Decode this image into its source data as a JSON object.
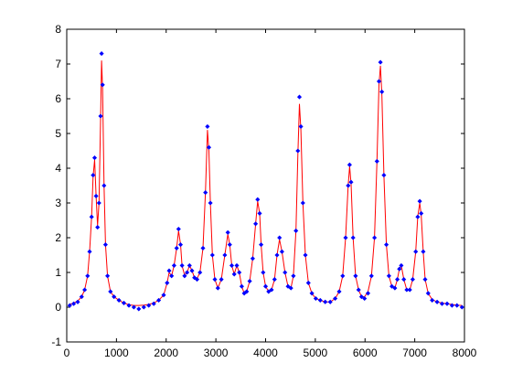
{
  "chart_data": {
    "type": "scatter",
    "title": "",
    "xlabel": "",
    "ylabel": "",
    "xlim": [
      0,
      8000
    ],
    "ylim": [
      -1,
      8
    ],
    "x_ticks": [
      0,
      1000,
      2000,
      3000,
      4000,
      5000,
      6000,
      7000,
      8000
    ],
    "x_tick_labels": [
      "0",
      "1000",
      "2000",
      "3000",
      "4000",
      "5000",
      "6000",
      "7000",
      "8000"
    ],
    "y_ticks": [
      -1,
      0,
      1,
      2,
      3,
      4,
      5,
      6,
      7,
      8
    ],
    "y_tick_labels": [
      "-1",
      "0",
      "1",
      "2",
      "3",
      "4",
      "5",
      "6",
      "7",
      "8"
    ],
    "grid": false,
    "legend": "none",
    "marker_color": "#0000ff",
    "line_color": "#ff0000",
    "series": [
      {
        "style": "blue-dot-markers",
        "x": [
          60,
          140,
          220,
          300,
          360,
          420,
          460,
          500,
          530,
          560,
          590,
          620,
          650,
          680,
          700,
          720,
          750,
          780,
          820,
          880,
          950,
          1050,
          1150,
          1250,
          1350,
          1450,
          1550,
          1650,
          1750,
          1850,
          1950,
          2020,
          2060,
          2110,
          2160,
          2210,
          2250,
          2290,
          2320,
          2370,
          2420,
          2470,
          2520,
          2570,
          2620,
          2680,
          2740,
          2790,
          2830,
          2860,
          2890,
          2930,
          2980,
          3040,
          3110,
          3180,
          3240,
          3280,
          3320,
          3370,
          3420,
          3470,
          3520,
          3570,
          3620,
          3680,
          3740,
          3800,
          3840,
          3880,
          3910,
          3950,
          4000,
          4060,
          4120,
          4180,
          4230,
          4280,
          4330,
          4390,
          4450,
          4510,
          4560,
          4610,
          4650,
          4680,
          4710,
          4750,
          4800,
          4860,
          4930,
          5010,
          5100,
          5200,
          5300,
          5400,
          5480,
          5550,
          5610,
          5660,
          5690,
          5720,
          5760,
          5810,
          5870,
          5930,
          5990,
          6060,
          6130,
          6190,
          6240,
          6280,
          6310,
          6340,
          6380,
          6430,
          6480,
          6540,
          6600,
          6650,
          6690,
          6730,
          6780,
          6840,
          6900,
          6960,
          7020,
          7060,
          7100,
          7130,
          7170,
          7210,
          7270,
          7350,
          7450,
          7550,
          7650,
          7750,
          7850,
          7950
        ],
        "y": [
          0.05,
          0.1,
          0.15,
          0.3,
          0.5,
          0.9,
          1.6,
          2.6,
          3.8,
          4.3,
          3.2,
          2.3,
          3.0,
          5.5,
          7.3,
          6.4,
          3.5,
          1.8,
          0.9,
          0.45,
          0.3,
          0.2,
          0.12,
          0.05,
          0.0,
          -0.05,
          0.0,
          0.05,
          0.1,
          0.2,
          0.35,
          0.7,
          1.05,
          0.9,
          1.2,
          1.7,
          2.25,
          1.8,
          1.2,
          0.9,
          1.0,
          1.2,
          1.05,
          0.85,
          0.8,
          1.0,
          1.7,
          3.3,
          5.2,
          4.6,
          3.0,
          1.5,
          0.8,
          0.55,
          0.8,
          1.5,
          2.15,
          1.8,
          1.2,
          0.95,
          1.2,
          1.0,
          0.6,
          0.4,
          0.45,
          0.75,
          1.4,
          2.4,
          3.1,
          2.7,
          1.8,
          1.0,
          0.6,
          0.45,
          0.5,
          0.8,
          1.5,
          2.0,
          1.6,
          1.0,
          0.6,
          0.55,
          0.9,
          2.2,
          4.5,
          6.05,
          5.2,
          3.0,
          1.5,
          0.7,
          0.4,
          0.25,
          0.2,
          0.15,
          0.15,
          0.25,
          0.45,
          0.9,
          2.0,
          3.5,
          4.1,
          3.6,
          2.0,
          0.9,
          0.5,
          0.3,
          0.25,
          0.4,
          0.9,
          2.0,
          4.2,
          6.5,
          7.05,
          6.2,
          3.8,
          1.8,
          0.9,
          0.6,
          0.55,
          0.8,
          1.1,
          1.2,
          0.8,
          0.5,
          0.5,
          0.8,
          1.6,
          2.6,
          3.05,
          2.7,
          1.6,
          0.8,
          0.4,
          0.2,
          0.15,
          0.1,
          0.1,
          0.05,
          0.05,
          0.0
        ]
      },
      {
        "style": "red-line",
        "x": [
          60,
          140,
          220,
          300,
          360,
          420,
          460,
          500,
          530,
          560,
          590,
          620,
          650,
          680,
          700,
          720,
          750,
          780,
          820,
          880,
          950,
          1050,
          1150,
          1250,
          1350,
          1450,
          1550,
          1650,
          1750,
          1850,
          1950,
          2020,
          2060,
          2110,
          2160,
          2210,
          2250,
          2290,
          2320,
          2370,
          2420,
          2470,
          2520,
          2570,
          2620,
          2680,
          2740,
          2790,
          2830,
          2860,
          2890,
          2930,
          2980,
          3040,
          3110,
          3180,
          3240,
          3280,
          3320,
          3370,
          3420,
          3470,
          3520,
          3570,
          3620,
          3680,
          3740,
          3800,
          3840,
          3880,
          3910,
          3950,
          4000,
          4060,
          4120,
          4180,
          4230,
          4280,
          4330,
          4390,
          4450,
          4510,
          4560,
          4610,
          4650,
          4680,
          4710,
          4750,
          4800,
          4860,
          4930,
          5010,
          5100,
          5200,
          5300,
          5400,
          5480,
          5550,
          5610,
          5660,
          5690,
          5720,
          5760,
          5810,
          5870,
          5930,
          5990,
          6060,
          6130,
          6190,
          6240,
          6280,
          6310,
          6340,
          6380,
          6430,
          6480,
          6540,
          6600,
          6650,
          6690,
          6730,
          6780,
          6840,
          6900,
          6960,
          7020,
          7060,
          7100,
          7130,
          7170,
          7210,
          7270,
          7350,
          7450,
          7550,
          7650,
          7750,
          7850,
          7950
        ],
        "y": [
          0.08,
          0.12,
          0.18,
          0.3,
          0.5,
          0.9,
          1.6,
          2.6,
          3.75,
          4.25,
          3.2,
          2.35,
          3.0,
          5.4,
          7.1,
          6.3,
          3.5,
          1.8,
          0.9,
          0.45,
          0.3,
          0.2,
          0.12,
          0.07,
          0.05,
          0.05,
          0.06,
          0.08,
          0.12,
          0.2,
          0.35,
          0.7,
          1.0,
          0.9,
          1.2,
          1.7,
          2.2,
          1.8,
          1.2,
          0.92,
          1.0,
          1.2,
          1.05,
          0.85,
          0.82,
          1.0,
          1.7,
          3.3,
          5.1,
          4.5,
          3.0,
          1.5,
          0.8,
          0.55,
          0.8,
          1.5,
          2.1,
          1.8,
          1.2,
          0.95,
          1.2,
          1.0,
          0.6,
          0.4,
          0.45,
          0.75,
          1.4,
          2.4,
          3.05,
          2.7,
          1.8,
          1.0,
          0.6,
          0.45,
          0.5,
          0.8,
          1.5,
          1.95,
          1.6,
          1.0,
          0.6,
          0.55,
          0.9,
          2.2,
          4.4,
          5.85,
          5.1,
          3.0,
          1.5,
          0.7,
          0.4,
          0.25,
          0.2,
          0.15,
          0.15,
          0.25,
          0.45,
          0.9,
          2.0,
          3.5,
          4.05,
          3.55,
          2.0,
          0.9,
          0.5,
          0.3,
          0.3,
          0.45,
          0.9,
          2.0,
          4.2,
          6.4,
          6.95,
          6.1,
          3.8,
          1.8,
          0.9,
          0.6,
          0.55,
          0.8,
          1.1,
          1.2,
          0.8,
          0.5,
          0.5,
          0.8,
          1.6,
          2.6,
          3.0,
          2.65,
          1.6,
          0.8,
          0.4,
          0.22,
          0.15,
          0.12,
          0.1,
          0.08,
          0.06,
          0.05
        ]
      }
    ]
  }
}
